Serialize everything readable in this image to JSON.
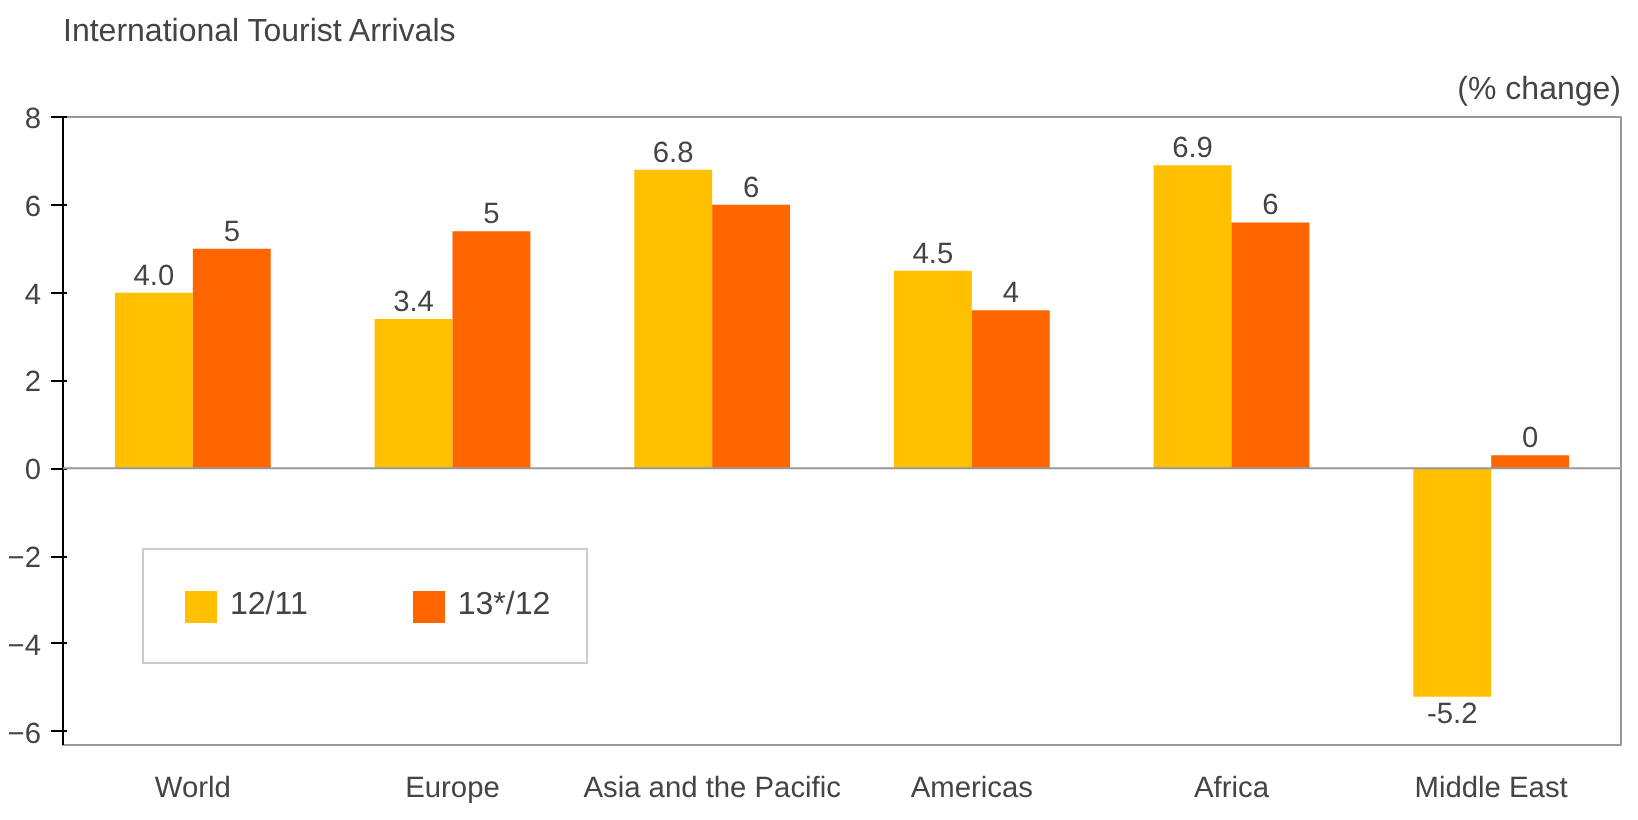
{
  "chart_data": {
    "type": "bar",
    "title": "International Tourist Arrivals",
    "ylabel": "(% change)",
    "categories": [
      "World",
      "Europe",
      "Asia and the Pacific",
      "Americas",
      "Africa",
      "Middle East"
    ],
    "series": [
      {
        "name": "12/11",
        "color": "#ffc000",
        "values": [
          4.0,
          3.4,
          6.8,
          4.5,
          6.9,
          -5.2
        ],
        "value_labels": [
          "4.0",
          "3.4",
          "6.8",
          "4.5",
          "6.9",
          "-5.2"
        ]
      },
      {
        "name": "13*/12",
        "color": "#ff6600",
        "values": [
          5.0,
          5.4,
          6.0,
          3.6,
          5.6,
          0.3
        ],
        "value_labels": [
          "5",
          "5",
          "6",
          "4",
          "6",
          "0"
        ]
      }
    ],
    "ylim": [
      -6.3,
      8
    ],
    "yticks": [
      -6,
      -4,
      -2,
      0,
      2,
      4,
      6,
      8
    ],
    "ref_lines": [
      {
        "axis": "y",
        "value": 0
      }
    ],
    "legend": "bottom left"
  }
}
